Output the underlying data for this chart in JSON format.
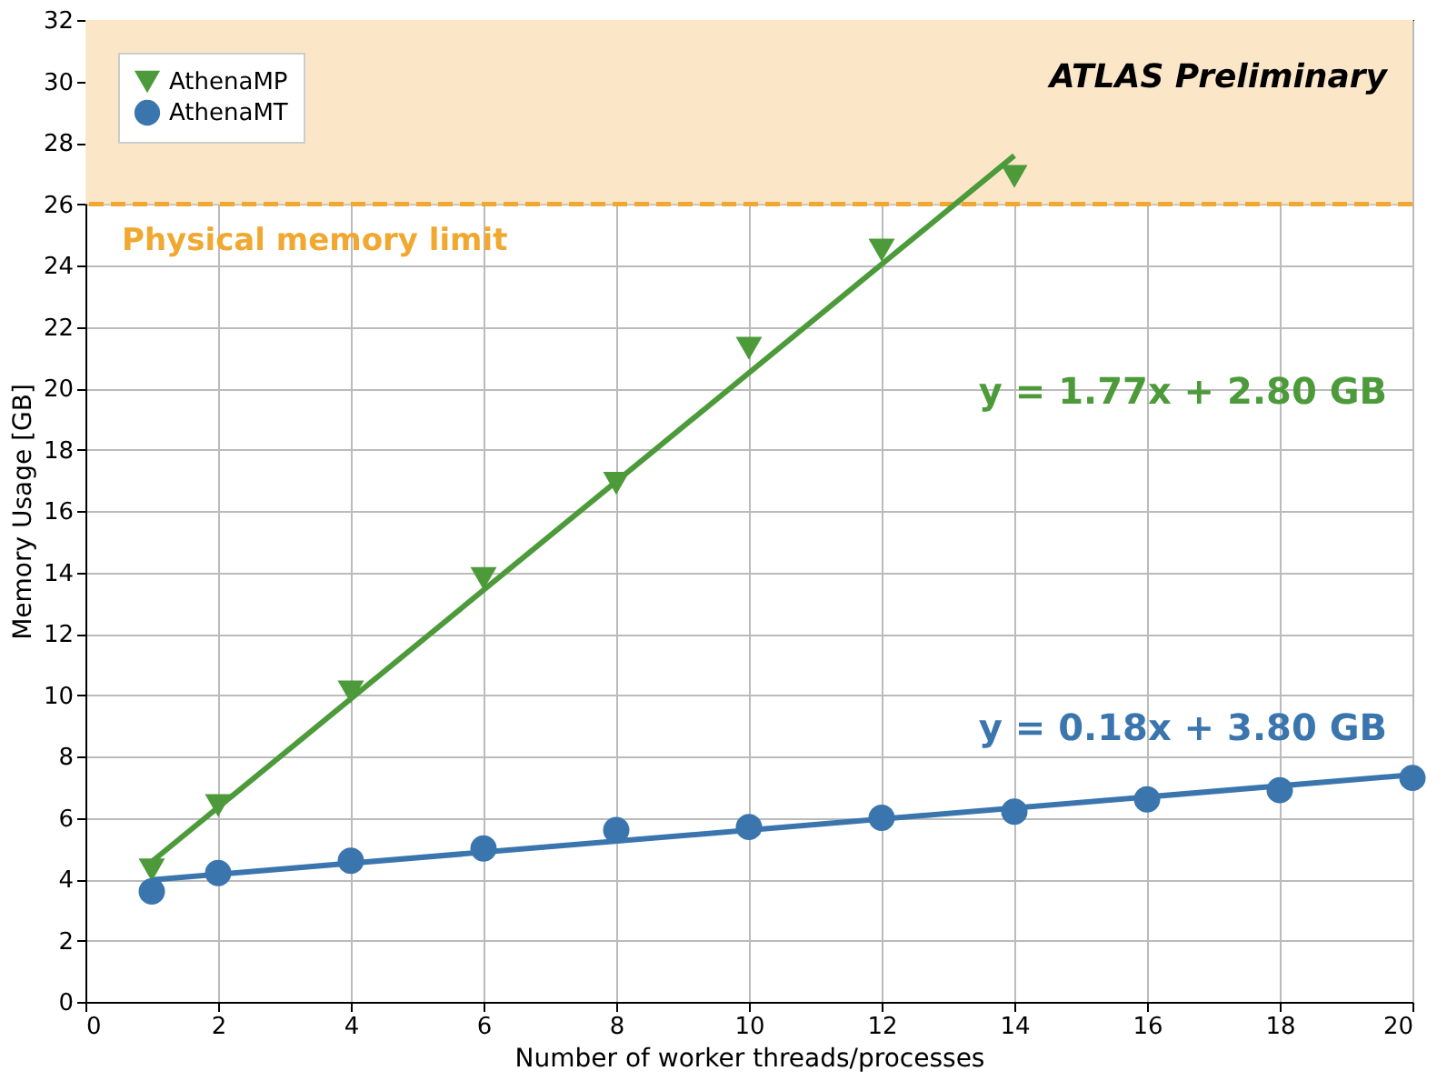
{
  "chart_data": {
    "type": "scatter",
    "xlabel": "Number of worker threads/processes",
    "ylabel": "Memory Usage [GB]",
    "xlim": [
      0,
      20
    ],
    "ylim": [
      0,
      32
    ],
    "xticks": [
      0,
      2,
      4,
      6,
      8,
      10,
      12,
      14,
      16,
      18,
      20
    ],
    "yticks": [
      0,
      2,
      4,
      6,
      8,
      10,
      12,
      14,
      16,
      18,
      20,
      22,
      24,
      26,
      28,
      30,
      32
    ],
    "grid": true,
    "legend": "top left",
    "series": [
      {
        "name": "AthenaMP",
        "marker": "triangle",
        "color": "#4c9a3a",
        "x": [
          1,
          2,
          4,
          6,
          8,
          10,
          12,
          14
        ],
        "values": [
          4.3,
          6.4,
          10.1,
          13.8,
          16.9,
          21.3,
          24.5,
          26.9
        ]
      },
      {
        "name": "AthenaMT",
        "marker": "circle",
        "color": "#3a75ae",
        "x": [
          1,
          2,
          4,
          6,
          8,
          10,
          12,
          14,
          16,
          18,
          20
        ],
        "values": [
          3.6,
          4.2,
          4.6,
          5.0,
          5.6,
          5.7,
          6.0,
          6.2,
          6.6,
          6.9,
          7.3
        ]
      },
      {
        "type": "line",
        "color": "#4c9a3a",
        "x": [
          1,
          14
        ],
        "values": [
          4.57,
          27.58
        ]
      },
      {
        "type": "line",
        "color": "#3a75ae",
        "x": [
          1,
          20
        ],
        "values": [
          3.98,
          7.4
        ]
      }
    ],
    "ref_lines": [
      {
        "axis": "y",
        "value": 26,
        "label": "Physical memory limit",
        "color": "#f0a830",
        "line_style": "dashed"
      }
    ],
    "bands": [
      {
        "axis": "y",
        "from": 26,
        "to": 32,
        "color": "#fbe6c8"
      }
    ],
    "annotations": [
      "ATLAS Preliminary",
      "y = 1.77x + 2.80 GB",
      "y = 0.18x + 3.80 GB"
    ]
  }
}
